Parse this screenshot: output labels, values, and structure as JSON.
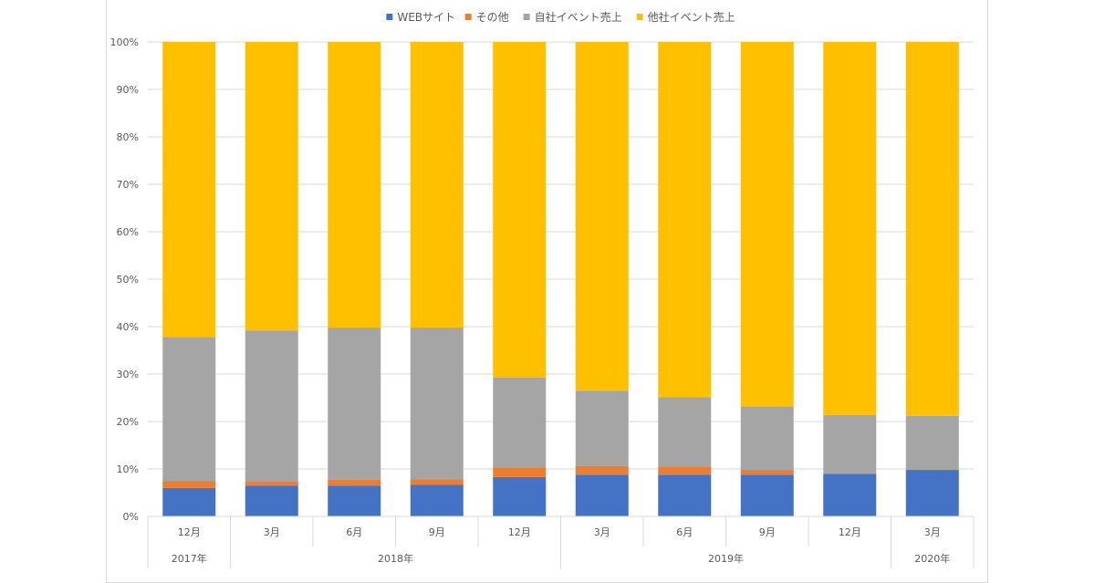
{
  "chart_data": {
    "type": "bar",
    "stacked": "percent",
    "categories": [
      "12月",
      "3月",
      "6月",
      "9月",
      "12月",
      "3月",
      "6月",
      "9月",
      "12月",
      "3月"
    ],
    "year_groups": [
      {
        "label": "2017年",
        "span": 1
      },
      {
        "label": "2018年",
        "span": 4
      },
      {
        "label": "2019年",
        "span": 4
      },
      {
        "label": "2020年",
        "span": 1
      }
    ],
    "series": [
      {
        "name": "WEBサイト",
        "color": "#4472c4",
        "values": [
          6.0,
          6.5,
          6.5,
          6.7,
          8.3,
          8.8,
          8.8,
          8.8,
          9.0,
          9.8
        ]
      },
      {
        "name": "その他",
        "color": "#ed7d31",
        "values": [
          1.4,
          0.8,
          1.2,
          1.1,
          2.0,
          1.8,
          1.7,
          1.0,
          0.0,
          0.0
        ]
      },
      {
        "name": "自社イベント売上",
        "color": "#a5a5a5",
        "values": [
          30.4,
          31.9,
          32.1,
          32.0,
          19.0,
          15.9,
          14.6,
          13.4,
          12.4,
          11.4
        ]
      },
      {
        "name": "他社イベント売上",
        "color": "#ffc000",
        "values": [
          62.2,
          60.8,
          60.2,
          60.2,
          70.7,
          73.5,
          74.9,
          76.8,
          78.6,
          78.8
        ]
      }
    ],
    "ylim": [
      0,
      100
    ],
    "yticks": [
      "0%",
      "10%",
      "20%",
      "30%",
      "40%",
      "50%",
      "60%",
      "70%",
      "80%",
      "90%",
      "100%"
    ],
    "grid": true,
    "legend": "top-center"
  }
}
